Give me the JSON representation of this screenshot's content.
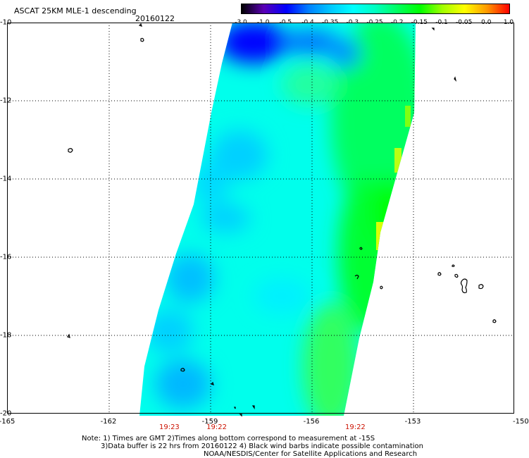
{
  "header": {
    "title": "ASCAT 25KM MLE-1 descending",
    "date": "20160122"
  },
  "colorbar": {
    "tick_labels": [
      "-3.0",
      "-1.0",
      "-0.5",
      "-0.4",
      "-0.35",
      "-0.3",
      "-0.25",
      "-0.2",
      "-0.15",
      "-0.1",
      "-0.05",
      "0.0",
      "1.0"
    ],
    "colors": [
      "#000000",
      "#5a00b5",
      "#0000ff",
      "#0080ff",
      "#00c8ff",
      "#00ffff",
      "#00ffc0",
      "#00ff60",
      "#00ff00",
      "#a0ff00",
      "#ffff00",
      "#ff9900",
      "#ff0000"
    ]
  },
  "axes": {
    "lat_labels": [
      "-10",
      "-12",
      "-14",
      "-16",
      "-18",
      "-20"
    ],
    "lon_labels": [
      "-165",
      "-162",
      "-159",
      "-156",
      "-153",
      "-150"
    ],
    "lat_range": [
      -20,
      -10
    ],
    "lon_range": [
      -165,
      -150
    ],
    "gridlines": "dotted"
  },
  "swath_times": [
    {
      "label": "19:23",
      "lon": -160.2
    },
    {
      "label": "19:22",
      "lon": -158.8
    },
    {
      "label": "19:22",
      "lon": -154.7
    }
  ],
  "notes": {
    "line1": "Note: 1) Times are GMT 2)Times along bottom correspond to measurement at -15S",
    "line2": "3)Data buffer is 22 hrs from 20160122 4) Black wind barbs indicate possible contamination",
    "line3": "NOAA/NESDIS/Center for Satellite Applications and Research"
  },
  "map_colors": {
    "deep_blue": "#0000ff",
    "blue": "#0080ff",
    "cyan_blue": "#00c8ff",
    "cyan": "#00ffff",
    "aqua_green": "#00ffc0",
    "green": "#00ff60",
    "bright_green": "#00ff00",
    "yellow": "#ffff00"
  }
}
